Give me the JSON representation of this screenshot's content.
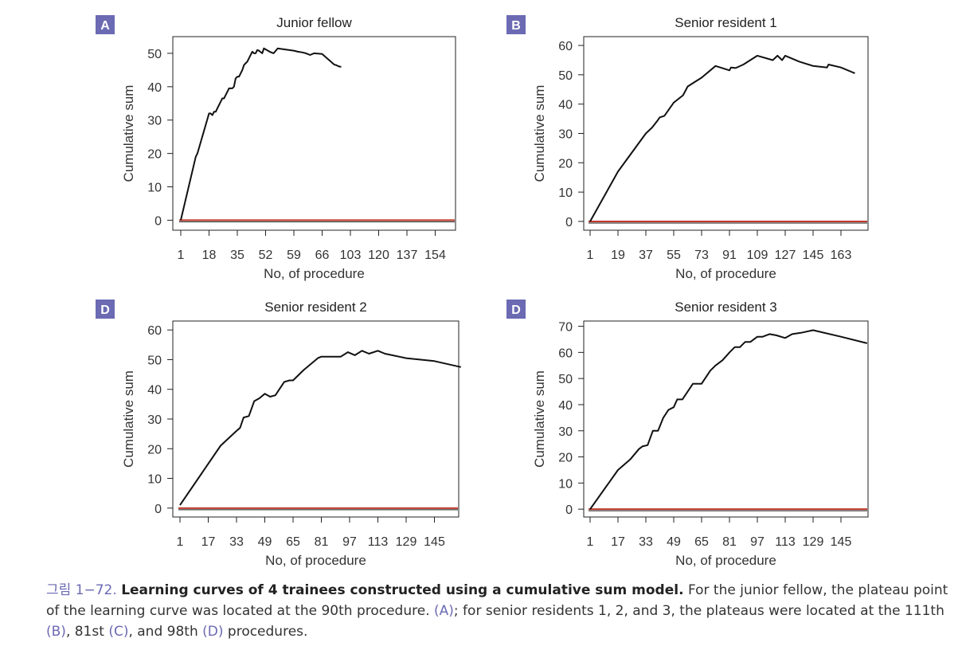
{
  "colors": {
    "badge": "#6b6ab3",
    "curve": "#111111",
    "baseline": "#c0392b",
    "axis": "#222222",
    "caption_accent": "#6b6ab3"
  },
  "chart_data": [
    {
      "type": "line",
      "panel_label": "A",
      "title": "Junior fellow",
      "xlabel": "No, of procedure",
      "ylabel": "Cumulative sum",
      "x_ticks": [
        "1",
        "18",
        "35",
        "52",
        "59",
        "66",
        "103",
        "120",
        "137",
        "154"
      ],
      "y_ticks": [
        0,
        10,
        20,
        30,
        40,
        50
      ],
      "ylim": [
        -3,
        55
      ],
      "grid": false,
      "series": [
        {
          "x": [
            1,
            10,
            11,
            18,
            19,
            20,
            21,
            22,
            23,
            25,
            26,
            27,
            28,
            30,
            32,
            33,
            34,
            35,
            36,
            38,
            39,
            40,
            41,
            42,
            44,
            45,
            46,
            47,
            48,
            50,
            51,
            53,
            54,
            55,
            56,
            59,
            60,
            61,
            62,
            63,
            64,
            66,
            67,
            68,
            69,
            70,
            71,
            72,
            73,
            74,
            75,
            76,
            77,
            78,
            79,
            80,
            81,
            82,
            84,
            85,
            86,
            87,
            88,
            89,
            90,
            91
          ],
          "y": [
            0,
            19,
            20,
            32,
            32,
            31.5,
            32.5,
            32.5,
            33.5,
            35.5,
            36.5,
            36.5,
            37.5,
            39.5,
            39.5,
            40,
            42.5,
            43,
            43,
            45,
            46.5,
            47,
            47.5,
            48.5,
            50.5,
            50,
            50,
            51,
            50.8,
            50,
            51.5,
            50.5,
            50,
            51.5,
            51.3,
            50.8,
            50.5,
            50.3,
            50,
            49.5,
            50,
            49.8,
            49.6,
            49.4,
            49.2,
            49,
            48.8,
            48.6,
            48.4,
            48.2,
            48,
            47.8,
            47.6,
            47.4,
            47.2,
            47,
            46.8,
            46.6,
            46.5,
            46.4,
            46.3,
            46.2,
            46.1,
            46,
            46,
            46
          ]
        }
      ],
      "baseline_y": 0
    },
    {
      "type": "line",
      "panel_label": "B",
      "title": "Senior resident 1",
      "xlabel": "No, of procedure",
      "ylabel": "Cumulative sum",
      "x_ticks": [
        "1",
        "19",
        "37",
        "55",
        "73",
        "91",
        "109",
        "127",
        "145",
        "163"
      ],
      "y_ticks": [
        0,
        10,
        20,
        30,
        40,
        50,
        60
      ],
      "ylim": [
        -3,
        63
      ],
      "grid": false,
      "series": [
        {
          "x": [
            1,
            19,
            37,
            41,
            44,
            46,
            49,
            55,
            61,
            64,
            67,
            73,
            82,
            91,
            92,
            95,
            100,
            109,
            119,
            122,
            125,
            127,
            136,
            145,
            154,
            155,
            163,
            172
          ],
          "y": [
            0,
            17,
            30,
            32,
            34,
            35.5,
            36,
            40.5,
            43,
            46,
            47,
            49,
            53,
            51.5,
            52.5,
            52.3,
            53.5,
            56.5,
            55,
            56.5,
            55,
            56.5,
            54.5,
            53,
            52.5,
            53.5,
            52.5,
            50.5
          ]
        }
      ],
      "baseline_y": 0
    },
    {
      "type": "line",
      "panel_label": "D",
      "title": "Senior resident 2",
      "xlabel": "No, of procedure",
      "ylabel": "Cumulative sum",
      "x_ticks": [
        "1",
        "17",
        "33",
        "49",
        "65",
        "81",
        "97",
        "113",
        "129",
        "145"
      ],
      "y_ticks": [
        0,
        10,
        20,
        30,
        40,
        50,
        60
      ],
      "ylim": [
        -3,
        63
      ],
      "grid": false,
      "series": [
        {
          "x": [
            1,
            24,
            33,
            35,
            37,
            40,
            43,
            46,
            49,
            52,
            55,
            60,
            63,
            65,
            71,
            79,
            81,
            92,
            96,
            100,
            104,
            108,
            113,
            117,
            129,
            145,
            160
          ],
          "y": [
            1,
            21,
            26,
            27,
            30.5,
            31,
            36,
            37,
            38.5,
            37.5,
            38,
            42.5,
            43,
            43,
            46.5,
            50.5,
            51,
            51,
            52.5,
            51.5,
            53,
            52,
            53,
            52,
            50.5,
            49.5,
            47.5
          ]
        }
      ],
      "baseline_y": 0
    },
    {
      "type": "line",
      "panel_label": "D",
      "title": "Senior resident 3",
      "xlabel": "No, of procedure",
      "ylabel": "Cumulative sum",
      "x_ticks": [
        "1",
        "17",
        "33",
        "49",
        "65",
        "81",
        "97",
        "113",
        "129",
        "145"
      ],
      "y_ticks": [
        0,
        10,
        20,
        30,
        40,
        50,
        60,
        70
      ],
      "ylim": [
        -3,
        72
      ],
      "grid": false,
      "series": [
        {
          "x": [
            1,
            17,
            24,
            29,
            31,
            34,
            37,
            40,
            43,
            46,
            49,
            51,
            54,
            57,
            60,
            63,
            65,
            70,
            73,
            77,
            81,
            84,
            87,
            90,
            93,
            97,
            100,
            104,
            108,
            113,
            117,
            122,
            129,
            145,
            160
          ],
          "y": [
            0,
            15,
            19,
            23,
            24,
            24.5,
            30,
            30,
            35,
            38,
            39,
            42,
            42,
            45,
            48,
            48,
            48,
            53,
            55,
            57,
            60,
            62,
            62,
            64,
            64,
            66,
            66,
            67,
            66.5,
            65.5,
            67,
            67.5,
            68.5,
            66,
            63.5
          ]
        }
      ],
      "baseline_y": 0
    }
  ],
  "caption": {
    "lead": "그림 1−72.",
    "bold": "Learning curves of 4 trainees constructed using a cumulative sum model.",
    "t1": "For the junior fellow, the plateau point of the learning curve was located at the 90th procedure.",
    "ref_a": "(A)",
    "t2": "; for senior residents 1, 2, and 3, the plateaus were located at the 111th",
    "ref_b": "(B)",
    "t3": ", 81st",
    "ref_c": "(C)",
    "t4": ", and 98th",
    "ref_d": "(D)",
    "t5": "procedures."
  }
}
